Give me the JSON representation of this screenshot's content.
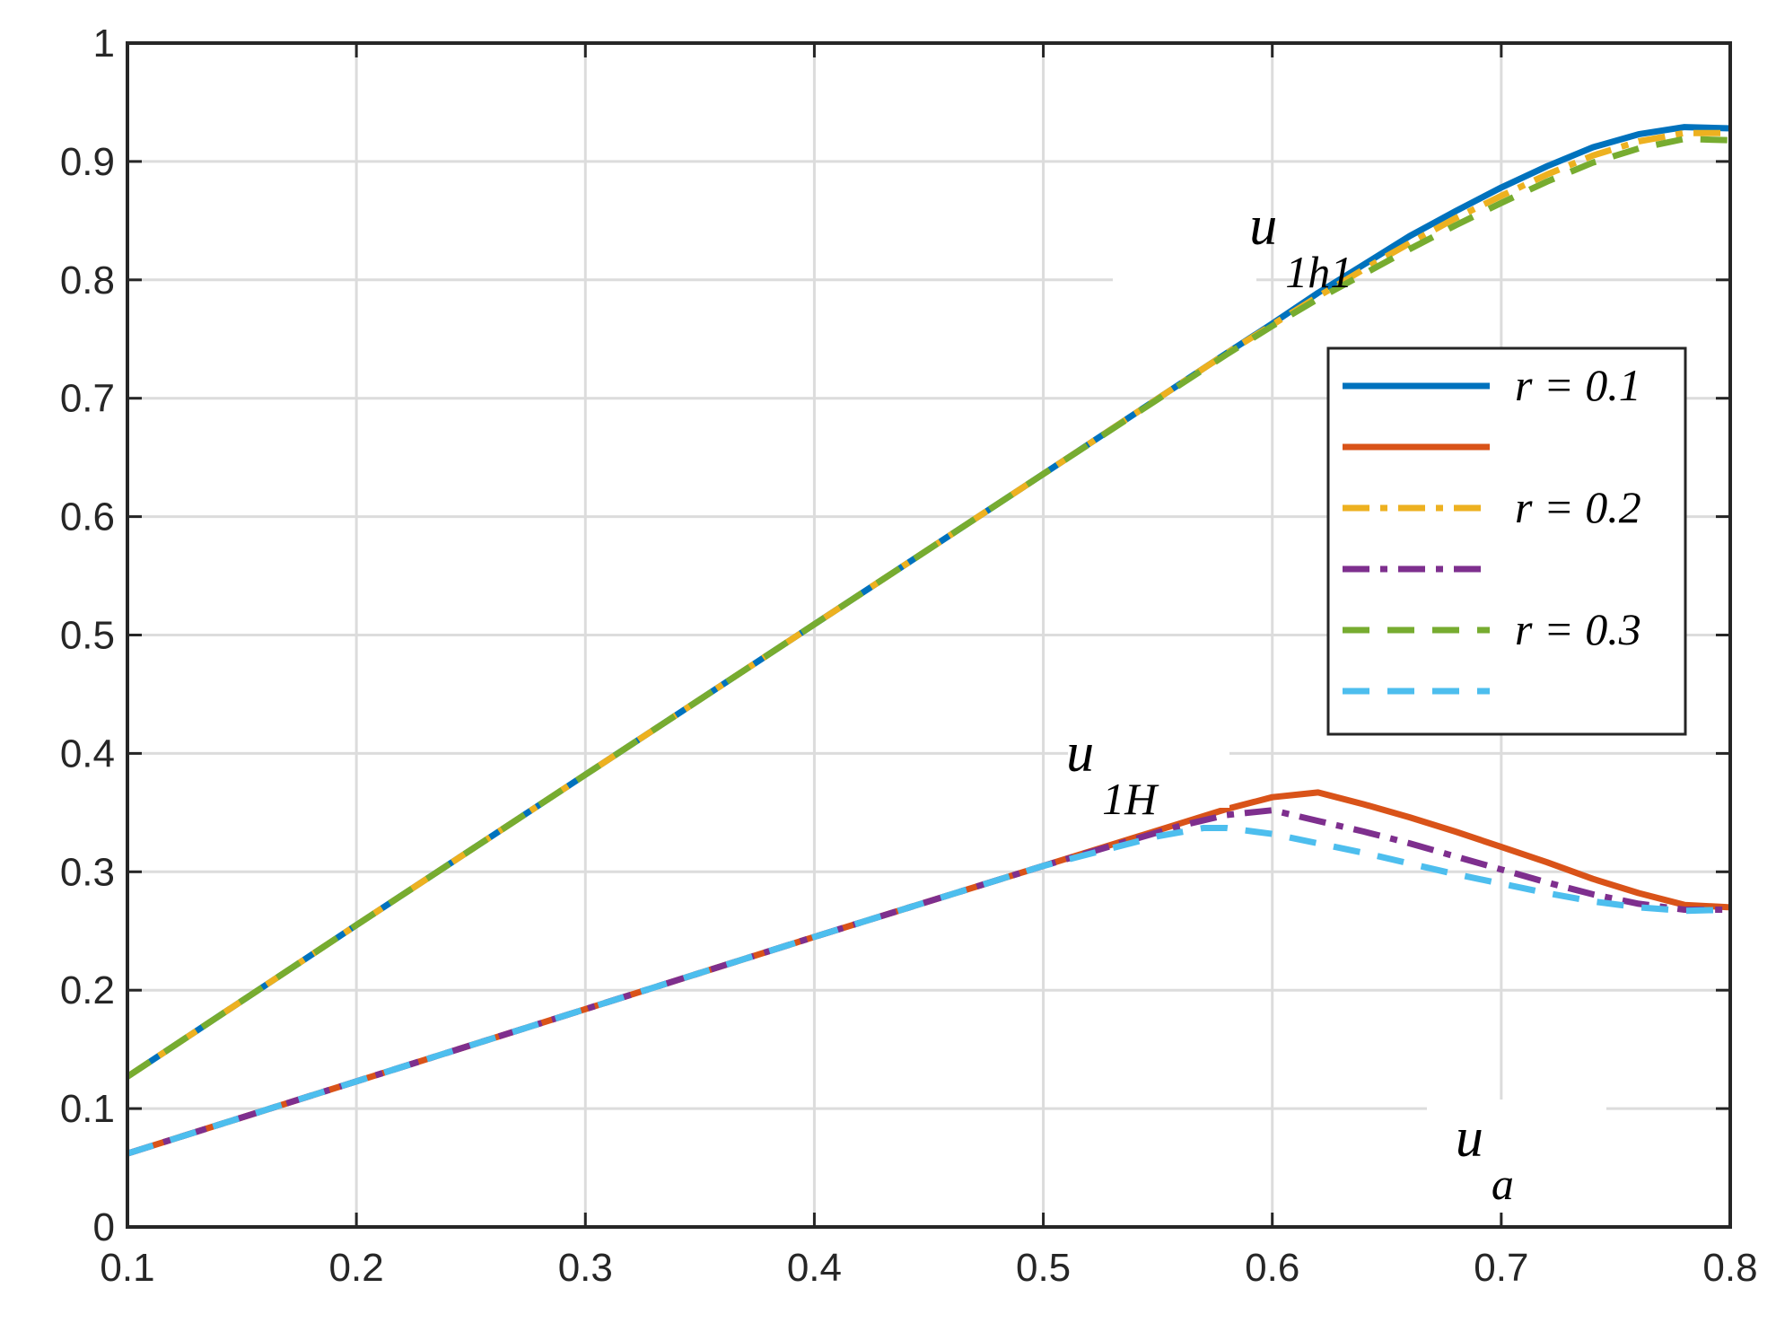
{
  "chart_data": {
    "type": "line",
    "xlim": [
      0.1,
      0.8
    ],
    "ylim": [
      0,
      1
    ],
    "x_ticks": [
      "0.1",
      "0.2",
      "0.3",
      "0.4",
      "0.5",
      "0.6",
      "0.7",
      "0.8"
    ],
    "y_ticks": [
      "0",
      "0.1",
      "0.2",
      "0.3",
      "0.4",
      "0.5",
      "0.6",
      "0.7",
      "0.8",
      "0.9",
      "1"
    ],
    "grid": true,
    "legend_position": "right-middle",
    "annotations": {
      "upper": {
        "base": "u",
        "sub": "1h1",
        "x": 0.59,
        "y": 0.83
      },
      "lower": {
        "base": "u",
        "sub": "1H",
        "x": 0.51,
        "y": 0.385
      },
      "xaxis": {
        "base": "u",
        "sub": "a",
        "x": 0.68,
        "y": 0.06
      }
    },
    "series": [
      {
        "name": "r = 0.1",
        "color": "#0072BD",
        "style": "solid",
        "x": [
          0.1,
          0.2,
          0.3,
          0.4,
          0.5,
          0.58,
          0.6,
          0.62,
          0.64,
          0.66,
          0.68,
          0.7,
          0.72,
          0.74,
          0.76,
          0.78,
          0.8
        ],
        "y": [
          0.127,
          0.255,
          0.382,
          0.509,
          0.636,
          0.738,
          0.763,
          0.789,
          0.813,
          0.837,
          0.858,
          0.878,
          0.896,
          0.912,
          0.923,
          0.929,
          0.928
        ]
      },
      {
        "name": "",
        "color": "#D95319",
        "style": "solid",
        "x": [
          0.1,
          0.2,
          0.3,
          0.4,
          0.5,
          0.56,
          0.58,
          0.6,
          0.62,
          0.64,
          0.66,
          0.68,
          0.7,
          0.72,
          0.74,
          0.76,
          0.78,
          0.8
        ],
        "y": [
          0.062,
          0.123,
          0.184,
          0.245,
          0.305,
          0.341,
          0.353,
          0.363,
          0.367,
          0.357,
          0.346,
          0.334,
          0.321,
          0.308,
          0.294,
          0.282,
          0.272,
          0.27
        ]
      },
      {
        "name": "r = 0.2",
        "color": "#EDB120",
        "style": "dashdot",
        "x": [
          0.1,
          0.2,
          0.3,
          0.4,
          0.5,
          0.58,
          0.6,
          0.62,
          0.64,
          0.66,
          0.68,
          0.7,
          0.72,
          0.74,
          0.76,
          0.78,
          0.8
        ],
        "y": [
          0.127,
          0.255,
          0.382,
          0.509,
          0.636,
          0.738,
          0.762,
          0.786,
          0.809,
          0.831,
          0.852,
          0.871,
          0.889,
          0.905,
          0.917,
          0.924,
          0.924
        ]
      },
      {
        "name": "",
        "color": "#7E2F8E",
        "style": "dashdot",
        "x": [
          0.1,
          0.2,
          0.3,
          0.4,
          0.5,
          0.56,
          0.58,
          0.6,
          0.62,
          0.64,
          0.66,
          0.68,
          0.7,
          0.72,
          0.74,
          0.76,
          0.78,
          0.8
        ],
        "y": [
          0.062,
          0.123,
          0.184,
          0.245,
          0.305,
          0.339,
          0.348,
          0.352,
          0.343,
          0.334,
          0.324,
          0.313,
          0.302,
          0.291,
          0.281,
          0.273,
          0.268,
          0.268
        ]
      },
      {
        "name": "r = 0.3",
        "color": "#77AC30",
        "style": "dashed",
        "x": [
          0.1,
          0.2,
          0.3,
          0.4,
          0.5,
          0.58,
          0.6,
          0.62,
          0.64,
          0.66,
          0.68,
          0.7,
          0.72,
          0.74,
          0.76,
          0.78,
          0.8
        ],
        "y": [
          0.127,
          0.255,
          0.382,
          0.509,
          0.636,
          0.737,
          0.761,
          0.784,
          0.805,
          0.826,
          0.846,
          0.865,
          0.883,
          0.899,
          0.911,
          0.919,
          0.918
        ]
      },
      {
        "name": "",
        "color": "#4DBEEE",
        "style": "dashed",
        "x": [
          0.1,
          0.2,
          0.3,
          0.4,
          0.5,
          0.55,
          0.57,
          0.58,
          0.6,
          0.62,
          0.64,
          0.66,
          0.68,
          0.7,
          0.72,
          0.74,
          0.76,
          0.78,
          0.8
        ],
        "y": [
          0.062,
          0.123,
          0.184,
          0.245,
          0.305,
          0.33,
          0.337,
          0.337,
          0.332,
          0.324,
          0.316,
          0.307,
          0.298,
          0.29,
          0.282,
          0.275,
          0.27,
          0.267,
          0.268
        ]
      }
    ]
  }
}
